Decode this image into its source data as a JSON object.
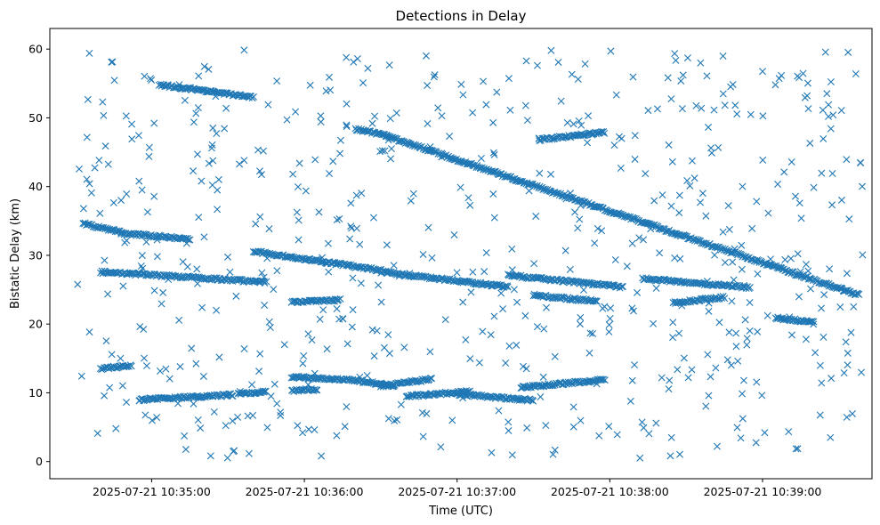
{
  "chart_data": {
    "type": "scatter",
    "title": "Detections in Delay",
    "xlabel": "Time (UTC)",
    "ylabel": "Bistatic Delay (km)",
    "x_type": "datetime",
    "xlim": [
      "2025-07-21 10:34:20",
      "2025-07-21 10:39:43"
    ],
    "ylim": [
      -2.5,
      63
    ],
    "xticks": [
      "2025-07-21 10:35:00",
      "2025-07-21 10:36:00",
      "2025-07-21 10:37:00",
      "2025-07-21 10:38:00",
      "2025-07-21 10:39:00"
    ],
    "yticks": [
      0,
      10,
      20,
      30,
      40,
      50,
      60
    ],
    "marker": "x",
    "grid": false,
    "legend": "none",
    "colors": {
      "series": "#1f77b4",
      "axes": "#000000",
      "background": "#ffffff"
    },
    "series": [
      {
        "marker": "x",
        "tracks": [
          {
            "start": "2025-07-21 10:34:33",
            "end": "2025-07-21 10:34:48",
            "delay_start": 34.6,
            "delay_end": 33.4
          },
          {
            "start": "2025-07-21 10:34:48",
            "end": "2025-07-21 10:35:15",
            "delay_start": 33.2,
            "delay_end": 32.4
          },
          {
            "start": "2025-07-21 10:35:03",
            "end": "2025-07-21 10:35:40",
            "delay_start": 54.8,
            "delay_end": 53.0
          },
          {
            "start": "2025-07-21 10:34:40",
            "end": "2025-07-21 10:35:45",
            "delay_start": 27.6,
            "delay_end": 26.1
          },
          {
            "start": "2025-07-21 10:35:40",
            "end": "2025-07-21 10:36:30",
            "delay_start": 30.6,
            "delay_end": 27.8
          },
          {
            "start": "2025-07-21 10:36:30",
            "end": "2025-07-21 10:37:20",
            "delay_start": 27.6,
            "delay_end": 25.4
          },
          {
            "start": "2025-07-21 10:37:20",
            "end": "2025-07-21 10:38:05",
            "delay_start": 27.1,
            "delay_end": 25.4
          },
          {
            "start": "2025-07-21 10:36:20",
            "end": "2025-07-21 10:36:32",
            "delay_start": 48.4,
            "delay_end": 47.4
          },
          {
            "start": "2025-07-21 10:36:32",
            "end": "2025-07-21 10:39:38",
            "delay_start": 47.4,
            "delay_end": 24.2
          },
          {
            "start": "2025-07-21 10:37:32",
            "end": "2025-07-21 10:37:58",
            "delay_start": 46.8,
            "delay_end": 47.9
          },
          {
            "start": "2025-07-21 10:35:55",
            "end": "2025-07-21 10:36:14",
            "delay_start": 23.2,
            "delay_end": 23.5
          },
          {
            "start": "2025-07-21 10:37:30",
            "end": "2025-07-21 10:37:55",
            "delay_start": 24.2,
            "delay_end": 23.3
          },
          {
            "start": "2025-07-21 10:38:13",
            "end": "2025-07-21 10:38:55",
            "delay_start": 26.6,
            "delay_end": 25.3
          },
          {
            "start": "2025-07-21 10:38:25",
            "end": "2025-07-21 10:38:45",
            "delay_start": 23.1,
            "delay_end": 23.9
          },
          {
            "start": "2025-07-21 10:39:05",
            "end": "2025-07-21 10:39:20",
            "delay_start": 20.9,
            "delay_end": 20.3
          },
          {
            "start": "2025-07-21 10:34:40",
            "end": "2025-07-21 10:34:52",
            "delay_start": 13.5,
            "delay_end": 14.0
          },
          {
            "start": "2025-07-21 10:34:55",
            "end": "2025-07-21 10:35:32",
            "delay_start": 9.0,
            "delay_end": 9.7
          },
          {
            "start": "2025-07-21 10:35:34",
            "end": "2025-07-21 10:35:45",
            "delay_start": 9.8,
            "delay_end": 10.2
          },
          {
            "start": "2025-07-21 10:35:55",
            "end": "2025-07-21 10:36:20",
            "delay_start": 12.3,
            "delay_end": 11.8
          },
          {
            "start": "2025-07-21 10:36:20",
            "end": "2025-07-21 10:36:35",
            "delay_start": 11.8,
            "delay_end": 11.0
          },
          {
            "start": "2025-07-21 10:36:30",
            "end": "2025-07-21 10:36:50",
            "delay_start": 11.0,
            "delay_end": 12.0
          },
          {
            "start": "2025-07-21 10:36:40",
            "end": "2025-07-21 10:37:05",
            "delay_start": 9.5,
            "delay_end": 10.2
          },
          {
            "start": "2025-07-21 10:37:00",
            "end": "2025-07-21 10:37:30",
            "delay_start": 9.8,
            "delay_end": 8.9
          },
          {
            "start": "2025-07-21 10:37:25",
            "end": "2025-07-21 10:37:58",
            "delay_start": 10.8,
            "delay_end": 11.9
          },
          {
            "start": "2025-07-21 10:35:55",
            "end": "2025-07-21 10:36:05",
            "delay_start": 10.3,
            "delay_end": 10.5
          }
        ],
        "noise_range": {
          "start": "2025-07-21 10:34:30",
          "end": "2025-07-21 10:39:40",
          "delay_min": 0.5,
          "delay_max": 60.0
        },
        "point_count_approx": 1500
      }
    ]
  }
}
